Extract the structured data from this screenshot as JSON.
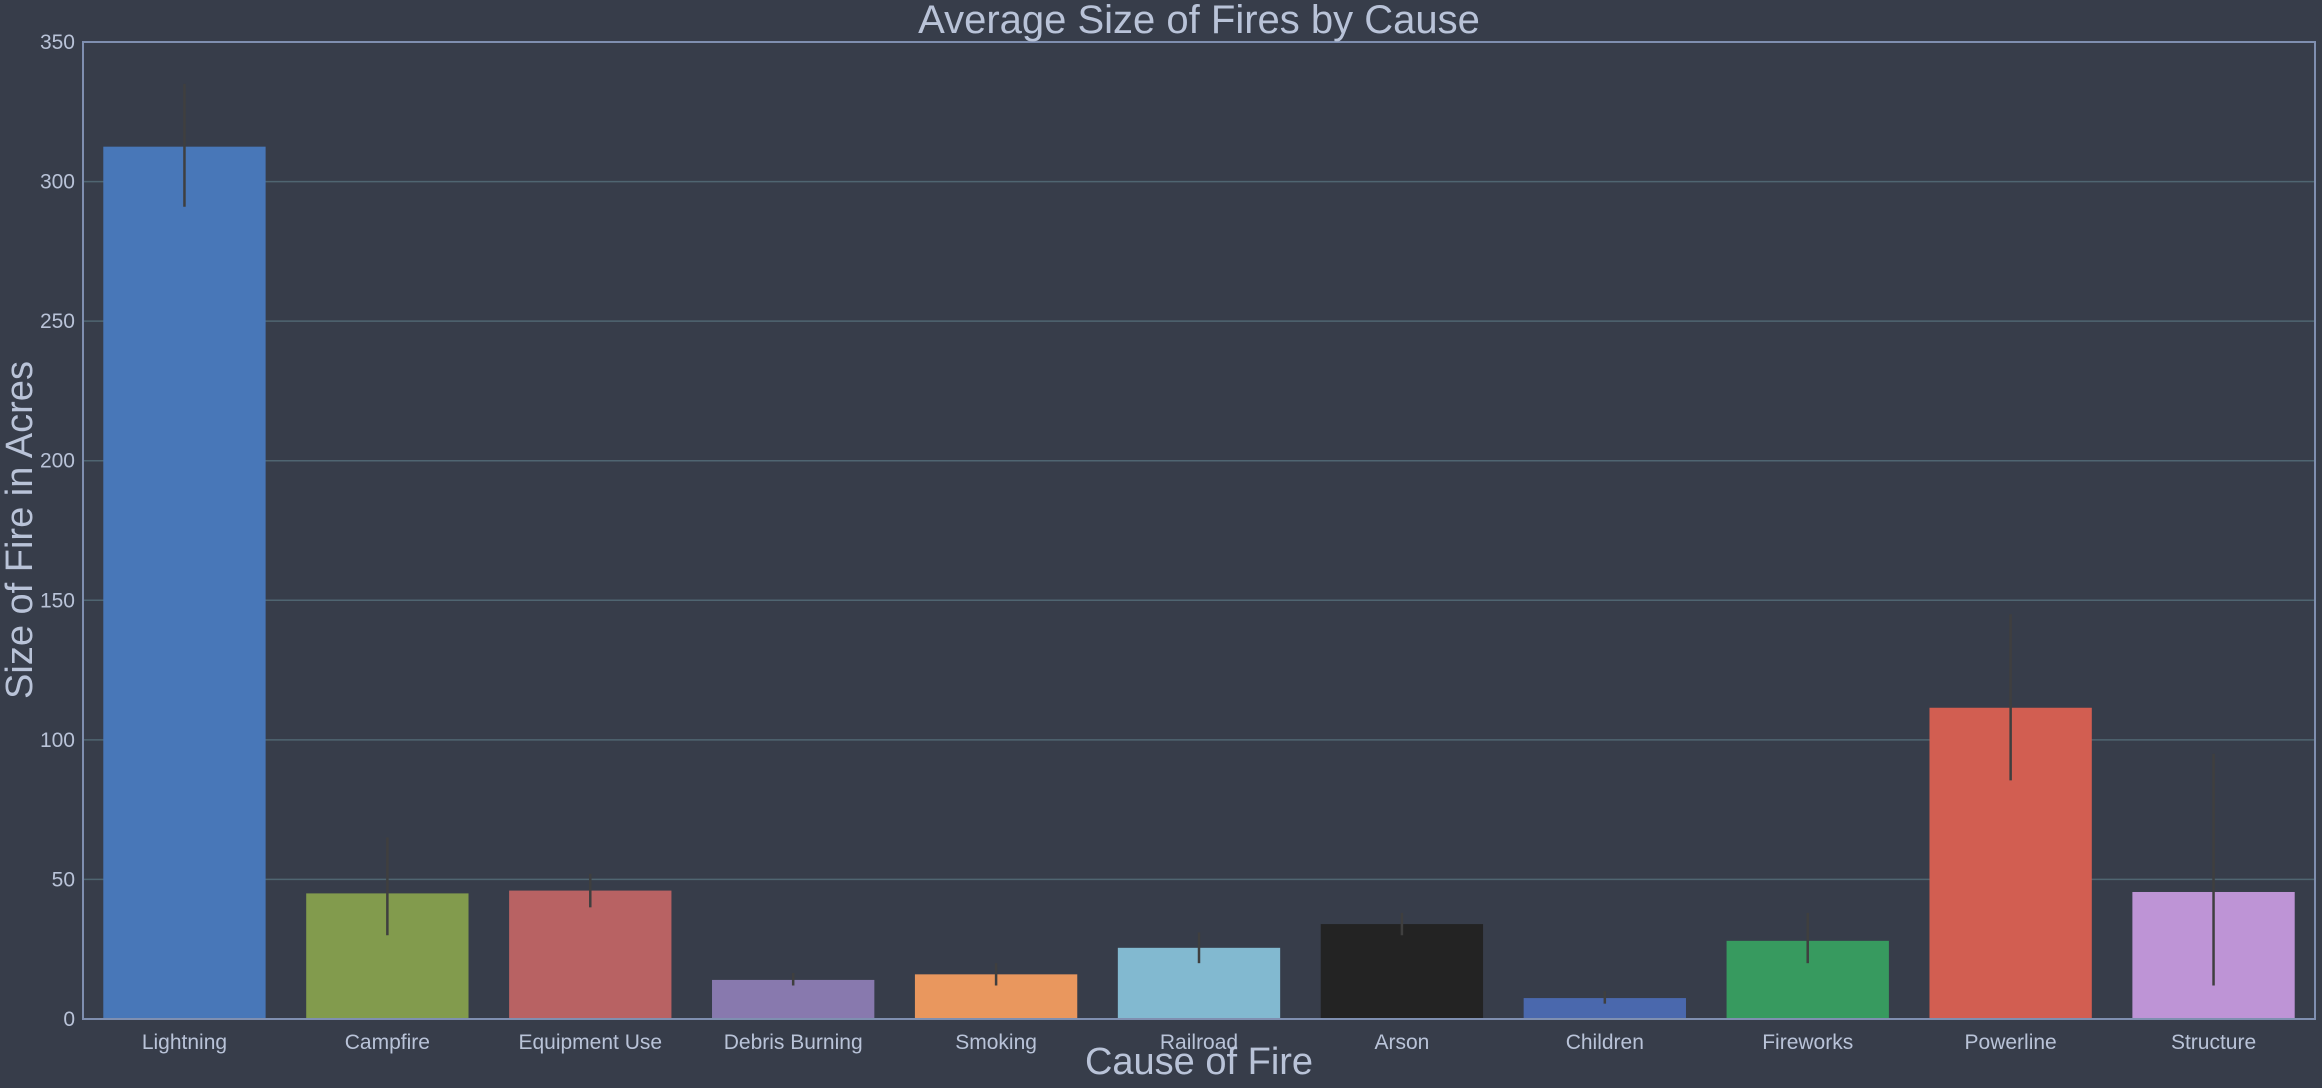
{
  "chart_data": {
    "type": "bar",
    "title": "Average Size of Fires by Cause",
    "xlabel": "Cause of Fire",
    "ylabel": "Size of Fire in Acres",
    "ylim": [
      0,
      350
    ],
    "yticks": [
      0,
      50,
      100,
      150,
      200,
      250,
      300,
      350
    ],
    "grid": "horizontal",
    "categories": [
      "Lightning",
      "Campfire",
      "Equipment Use",
      "Debris Burning",
      "Smoking",
      "Railroad",
      "Arson",
      "Children",
      "Fireworks",
      "Powerline",
      "Structure"
    ],
    "values": [
      312.5,
      45,
      46,
      14,
      16,
      25.5,
      34,
      7.5,
      28,
      111.5,
      45.5
    ],
    "error_low": [
      291,
      30,
      40,
      12,
      12,
      20,
      30,
      5.5,
      20,
      85.5,
      12
    ],
    "error_high": [
      335,
      65,
      52,
      16.5,
      20,
      31,
      38,
      10,
      38,
      145,
      95
    ],
    "colors": [
      "#4877b8",
      "#829b4d",
      "#b86263",
      "#8879ae",
      "#e9975e",
      "#82b9d0",
      "#232323",
      "#4a68ad",
      "#379a5f",
      "#d25e51",
      "#be94d6"
    ],
    "style": {
      "background": "#373d4a",
      "grid_color": "#4f6571",
      "frame_color": "#7f8fb0",
      "text_color": "#b9c3d8",
      "errorbar_color": "#3f3f3f"
    }
  }
}
